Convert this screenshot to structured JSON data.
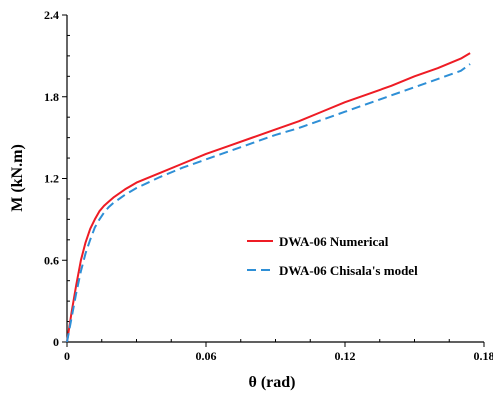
{
  "chart_data": {
    "type": "line",
    "title": "",
    "xlabel": "θ (rad)",
    "ylabel": "M (kN.m)",
    "xlim": [
      0,
      0.18
    ],
    "ylim": [
      0,
      2.4
    ],
    "xticks": [
      0,
      0.06,
      0.12,
      0.18
    ],
    "xtick_labels": [
      "0",
      "0.06",
      "0.12",
      "0.18"
    ],
    "yticks": [
      0,
      0.6,
      1.2,
      1.8,
      2.4
    ],
    "ytick_labels": [
      "0",
      "0.6",
      "1.2",
      "1.8",
      "2.4"
    ],
    "grid": false,
    "legend_position": "center-right",
    "series": [
      {
        "name": "DWA-06 Numerical",
        "color": "#ee1c25",
        "dash": "solid",
        "x": [
          0,
          0.002,
          0.004,
          0.006,
          0.008,
          0.01,
          0.012,
          0.014,
          0.016,
          0.018,
          0.02,
          0.025,
          0.03,
          0.04,
          0.05,
          0.06,
          0.07,
          0.08,
          0.09,
          0.1,
          0.11,
          0.12,
          0.13,
          0.14,
          0.15,
          0.16,
          0.17,
          0.174
        ],
        "y": [
          0,
          0.22,
          0.42,
          0.6,
          0.73,
          0.83,
          0.9,
          0.96,
          1.0,
          1.03,
          1.06,
          1.12,
          1.17,
          1.24,
          1.31,
          1.38,
          1.44,
          1.5,
          1.56,
          1.62,
          1.69,
          1.76,
          1.82,
          1.88,
          1.95,
          2.01,
          2.08,
          2.12
        ]
      },
      {
        "name": "DWA-06 Chisala's model",
        "color": "#2e8fd6",
        "dash": "dashed",
        "x": [
          0,
          0.002,
          0.004,
          0.006,
          0.008,
          0.01,
          0.012,
          0.014,
          0.016,
          0.018,
          0.02,
          0.025,
          0.03,
          0.04,
          0.05,
          0.06,
          0.07,
          0.08,
          0.09,
          0.1,
          0.11,
          0.12,
          0.13,
          0.14,
          0.15,
          0.16,
          0.17,
          0.174
        ],
        "y": [
          0,
          0.18,
          0.36,
          0.52,
          0.65,
          0.75,
          0.84,
          0.9,
          0.95,
          0.99,
          1.02,
          1.08,
          1.13,
          1.21,
          1.28,
          1.34,
          1.4,
          1.46,
          1.52,
          1.57,
          1.63,
          1.69,
          1.75,
          1.81,
          1.87,
          1.93,
          1.99,
          2.04
        ]
      }
    ]
  }
}
